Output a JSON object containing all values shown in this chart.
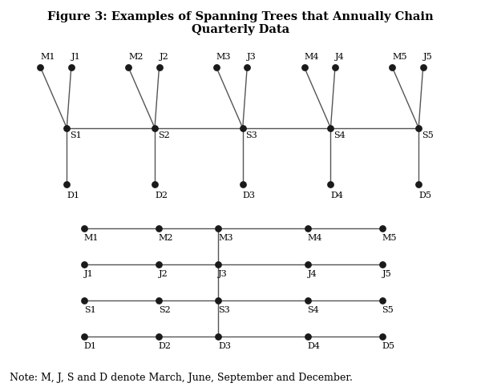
{
  "title": "Figure 3: Examples of Spanning Trees that Annually Chain\nQuarterly Data",
  "title_fontsize": 10.5,
  "note": "Note: M, J, S and D denote March, June, September and December.",
  "note_fontsize": 9,
  "top_tree": {
    "S_nodes": {
      "labels": [
        "S1",
        "S2",
        "S3",
        "S4",
        "S5"
      ],
      "x": [
        1.3,
        3.3,
        5.3,
        7.3,
        9.3
      ],
      "y": [
        0,
        0,
        0,
        0,
        0
      ]
    },
    "M_nodes": {
      "labels": [
        "M1",
        "M2",
        "M3",
        "M4",
        "M5"
      ],
      "x": [
        0.7,
        2.7,
        4.7,
        6.7,
        8.7
      ],
      "y": [
        1.5,
        1.5,
        1.5,
        1.5,
        1.5
      ]
    },
    "J_nodes": {
      "labels": [
        "J1",
        "J2",
        "J3",
        "J4",
        "J5"
      ],
      "x": [
        1.4,
        3.4,
        5.4,
        7.4,
        9.4
      ],
      "y": [
        1.5,
        1.5,
        1.5,
        1.5,
        1.5
      ]
    },
    "D_nodes": {
      "labels": [
        "D1",
        "D2",
        "D3",
        "D4",
        "D5"
      ],
      "x": [
        1.3,
        3.3,
        5.3,
        7.3,
        9.3
      ],
      "y": [
        -1.4,
        -1.4,
        -1.4,
        -1.4,
        -1.4
      ]
    }
  },
  "bottom_tree": {
    "M_nodes": {
      "labels": [
        "M1",
        "M2",
        "M3",
        "M4",
        "M5"
      ],
      "x": [
        2.8,
        3.8,
        4.6,
        5.8,
        6.8
      ],
      "y": [
        3,
        3,
        3,
        3,
        3
      ]
    },
    "J_nodes": {
      "labels": [
        "J1",
        "J2",
        "J3",
        "J4",
        "J5"
      ],
      "x": [
        2.8,
        3.8,
        4.6,
        5.8,
        6.8
      ],
      "y": [
        2,
        2,
        2,
        2,
        2
      ]
    },
    "S_nodes": {
      "labels": [
        "S1",
        "S2",
        "S3",
        "S4",
        "S5"
      ],
      "x": [
        2.8,
        3.8,
        4.6,
        5.8,
        6.8
      ],
      "y": [
        1,
        1,
        1,
        1,
        1
      ]
    },
    "D_nodes": {
      "labels": [
        "D1",
        "D2",
        "D3",
        "D4",
        "D5"
      ],
      "x": [
        2.8,
        3.8,
        4.6,
        5.8,
        6.8
      ],
      "y": [
        0,
        0,
        0,
        0,
        0
      ]
    },
    "spine_col_idx": 2
  },
  "dot_color": "#1a1a1a",
  "line_color": "#555555",
  "dot_size": 28,
  "label_fontsize": 8.0,
  "font_family": "serif"
}
